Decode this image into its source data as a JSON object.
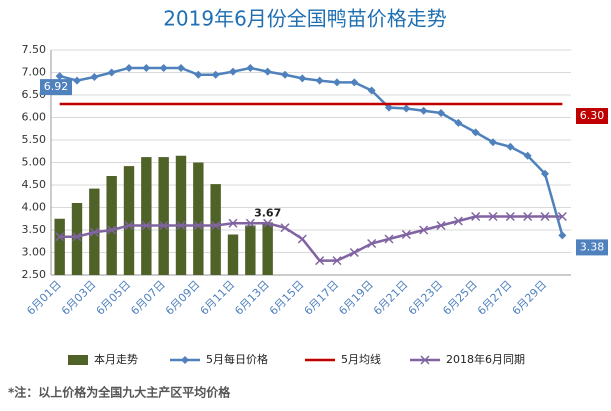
{
  "chart_data": {
    "type": "bar-line",
    "title": "2019年6月份全国鸭苗价格走势",
    "footnote": "*注：以上价格为全国九大主产区平均价格",
    "categories": [
      "6月01日",
      null,
      "6月03日",
      null,
      "6月05日",
      null,
      "6月07日",
      null,
      "6月09日",
      null,
      "6月11日",
      null,
      "6月13日",
      null,
      "6月15日",
      null,
      "6月17日",
      null,
      "6月19日",
      null,
      "6月21日",
      null,
      "6月23日",
      null,
      "6月25日",
      null,
      "6月27日",
      null,
      "6月29日",
      null
    ],
    "ylim": [
      2.5,
      7.5
    ],
    "yticks": [
      {
        "value": 2.5,
        "label": "2.50"
      },
      {
        "value": 3,
        "label": "3.00"
      },
      {
        "value": 3.5,
        "label": "3.50"
      },
      {
        "value": 4,
        "label": "4.00"
      },
      {
        "value": 4.5,
        "label": "4.50"
      },
      {
        "value": 5,
        "label": "5.00"
      },
      {
        "value": 5.5,
        "label": "5.50"
      },
      {
        "value": 6,
        "label": "6.00"
      },
      {
        "value": 6.5,
        "label": "6.50"
      },
      {
        "value": 7,
        "label": "7.00"
      },
      {
        "value": 7.5,
        "label": "7.50"
      }
    ],
    "series": [
      {
        "name": "本月走势",
        "kind": "bar",
        "color": "#4f6228",
        "values": [
          3.75,
          4.1,
          4.42,
          4.7,
          4.92,
          5.12,
          5.12,
          5.15,
          5.0,
          4.52,
          3.4,
          3.6,
          3.67,
          null,
          null,
          null,
          null,
          null,
          null,
          null,
          null,
          null,
          null,
          null,
          null,
          null,
          null,
          null,
          null,
          null
        ],
        "value_labels": [
          null,
          null,
          null,
          null,
          null,
          null,
          null,
          null,
          null,
          null,
          null,
          null,
          "3.67",
          null,
          null,
          null,
          null,
          null,
          null,
          null,
          null,
          null,
          null,
          null,
          null,
          null,
          null,
          null,
          null,
          null
        ]
      },
      {
        "name": "5月每日价格",
        "kind": "line",
        "marker": "diamond",
        "color": "#4f81bd",
        "values": [
          6.92,
          6.82,
          6.9,
          7.0,
          7.1,
          7.1,
          7.1,
          7.1,
          6.95,
          6.95,
          7.02,
          7.1,
          7.02,
          6.95,
          6.87,
          6.82,
          6.78,
          6.78,
          6.6,
          6.22,
          6.2,
          6.15,
          6.1,
          5.88,
          5.67,
          5.45,
          5.35,
          5.15,
          4.75,
          3.38
        ],
        "value_labels": [
          "6.92",
          null,
          null,
          null,
          null,
          null,
          null,
          null,
          null,
          null,
          null,
          null,
          null,
          null,
          null,
          null,
          null,
          null,
          null,
          null,
          null,
          null,
          null,
          null,
          null,
          null,
          null,
          null,
          null,
          "3.38"
        ]
      },
      {
        "name": "5月均线",
        "kind": "line",
        "marker": "none",
        "color": "#c00000",
        "values": [
          6.3,
          6.3,
          6.3,
          6.3,
          6.3,
          6.3,
          6.3,
          6.3,
          6.3,
          6.3,
          6.3,
          6.3,
          6.3,
          6.3,
          6.3,
          6.3,
          6.3,
          6.3,
          6.3,
          6.3,
          6.3,
          6.3,
          6.3,
          6.3,
          6.3,
          6.3,
          6.3,
          6.3,
          6.3,
          6.3
        ],
        "value_labels": [
          null,
          null,
          null,
          null,
          null,
          null,
          null,
          null,
          null,
          null,
          null,
          null,
          null,
          null,
          null,
          null,
          null,
          null,
          null,
          null,
          null,
          null,
          null,
          null,
          null,
          null,
          null,
          null,
          null,
          "6.30"
        ]
      },
      {
        "name": "2018年6月同期",
        "kind": "line",
        "marker": "x",
        "color": "#8064a2",
        "values": [
          3.35,
          3.35,
          3.45,
          3.5,
          3.6,
          3.6,
          3.6,
          3.6,
          3.6,
          3.6,
          3.65,
          3.65,
          3.65,
          3.55,
          3.3,
          2.82,
          2.82,
          3.0,
          3.2,
          3.3,
          3.4,
          3.5,
          3.6,
          3.7,
          3.8,
          3.8,
          3.8,
          3.8,
          3.8,
          3.8
        ]
      }
    ]
  }
}
